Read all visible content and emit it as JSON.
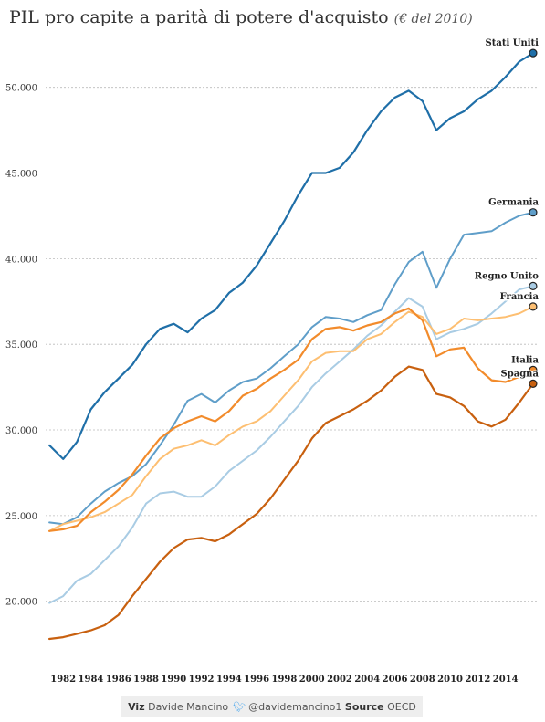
{
  "title": "PIL pro capite a parità di potere d'acquisto",
  "subtitle": "(€ del 2010)",
  "footer": {
    "viz_label": "Viz",
    "viz_name": "Davide Mancino",
    "twitter_icon": "twitter-bird-icon",
    "twitter": "@davidemancino1",
    "source_label": "Source",
    "source_name": "OECD"
  },
  "chart_data": {
    "type": "line",
    "title": "PIL pro capite a parità di potere d'acquisto",
    "subtitle": "(€ del 2010)",
    "x": [
      1981,
      1982,
      1983,
      1984,
      1985,
      1986,
      1987,
      1988,
      1989,
      1990,
      1991,
      1992,
      1993,
      1994,
      1995,
      1996,
      1997,
      1998,
      1999,
      2000,
      2001,
      2002,
      2003,
      2004,
      2005,
      2006,
      2007,
      2008,
      2009,
      2010,
      2011,
      2012,
      2013,
      2014,
      2015,
      2016
    ],
    "x_ticks": [
      "1982",
      "1984",
      "1986",
      "1988",
      "1990",
      "1992",
      "1994",
      "1996",
      "1998",
      "2000",
      "2002",
      "2004",
      "2006",
      "2008",
      "2010",
      "2012",
      "2014"
    ],
    "y_ticks": [
      "20.000",
      "25.000",
      "30.000",
      "35.000",
      "40.000",
      "45.000",
      "50.000"
    ],
    "y_tick_values": [
      20000,
      25000,
      30000,
      35000,
      40000,
      45000,
      50000
    ],
    "ylim": [
      17000,
      53500
    ],
    "xlim": [
      1980.6,
      2016.4
    ],
    "grid": "horizontal dotted",
    "series": [
      {
        "name": "Stati Uniti",
        "color": "#1f6fa8",
        "width": 2.2,
        "values": [
          29100,
          28300,
          29300,
          31200,
          32200,
          33000,
          33800,
          35000,
          35900,
          36200,
          35700,
          36500,
          37000,
          38000,
          38600,
          39600,
          40900,
          42200,
          43700,
          45000,
          45000,
          45300,
          46200,
          47500,
          48600,
          49400,
          49800,
          49200,
          47500,
          48200,
          48600,
          49300,
          49800,
          50600,
          51500,
          52000
        ]
      },
      {
        "name": "Germania",
        "color": "#5f9ec9",
        "width": 2.0,
        "values": [
          24600,
          24500,
          24900,
          25700,
          26400,
          26900,
          27300,
          28000,
          29100,
          30300,
          31700,
          32100,
          31600,
          32300,
          32800,
          33000,
          33600,
          34300,
          35000,
          36000,
          36600,
          36500,
          36300,
          36700,
          37000,
          38500,
          39800,
          40400,
          38300,
          40000,
          41400,
          41500,
          41600,
          42100,
          42500,
          42700
        ]
      },
      {
        "name": "Regno Unito",
        "color": "#a9cce4",
        "width": 2.0,
        "values": [
          19900,
          20300,
          21200,
          21600,
          22400,
          23200,
          24300,
          25700,
          26300,
          26400,
          26100,
          26100,
          26700,
          27600,
          28200,
          28800,
          29600,
          30500,
          31400,
          32500,
          33300,
          34000,
          34700,
          35500,
          36100,
          36900,
          37700,
          37200,
          35300,
          35700,
          35900,
          36200,
          36800,
          37500,
          38200,
          38400
        ]
      },
      {
        "name": "Francia",
        "color": "#fdbf72",
        "width": 2.0,
        "values": [
          24100,
          24500,
          24700,
          24900,
          25200,
          25700,
          26200,
          27300,
          28300,
          28900,
          29100,
          29400,
          29100,
          29700,
          30200,
          30500,
          31100,
          32000,
          32900,
          34000,
          34500,
          34600,
          34600,
          35300,
          35600,
          36300,
          36900,
          36600,
          35600,
          35900,
          36500,
          36400,
          36500,
          36600,
          36800,
          37200
        ]
      },
      {
        "name": "Italia",
        "color": "#f28b2b",
        "width": 2.2,
        "values": [
          24100,
          24200,
          24400,
          25200,
          25800,
          26500,
          27400,
          28500,
          29500,
          30100,
          30500,
          30800,
          30500,
          31100,
          32000,
          32400,
          33000,
          33500,
          34100,
          35300,
          35900,
          36000,
          35800,
          36100,
          36300,
          36800,
          37100,
          36400,
          34300,
          34700,
          34800,
          33600,
          32900,
          32800,
          33100,
          33500
        ]
      },
      {
        "name": "Spagna",
        "color": "#c8600f",
        "width": 2.2,
        "values": [
          17800,
          17900,
          18100,
          18300,
          18600,
          19200,
          20300,
          21300,
          22300,
          23100,
          23600,
          23700,
          23500,
          23900,
          24500,
          25100,
          26000,
          27100,
          28200,
          29500,
          30400,
          30800,
          31200,
          31700,
          32300,
          33100,
          33700,
          33500,
          32100,
          31900,
          31400,
          30500,
          30200,
          30600,
          31600,
          32700
        ]
      }
    ]
  }
}
